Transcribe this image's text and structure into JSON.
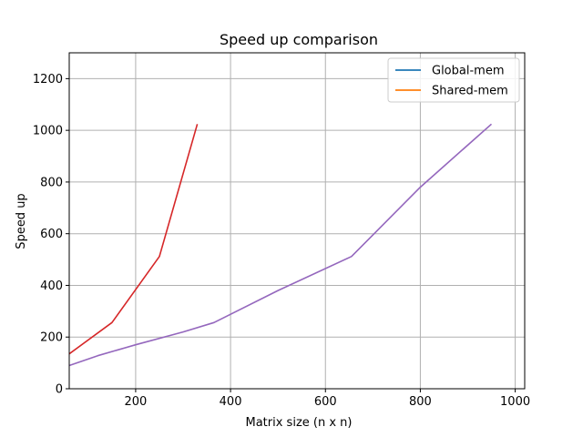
{
  "chart_data": {
    "type": "line",
    "title": "Speed up comparison",
    "xlabel": "Matrix size (n x n)",
    "ylabel": "Speed up",
    "xlim": [
      60,
      1020
    ],
    "ylim": [
      0,
      1300
    ],
    "x_ticks": [
      200,
      400,
      600,
      800,
      1000
    ],
    "y_ticks": [
      0,
      200,
      400,
      600,
      800,
      1000,
      1200
    ],
    "grid": true,
    "legend": {
      "position": "top-right",
      "entries": [
        {
          "name": "Global-mem",
          "color": "#1f77b4"
        },
        {
          "name": "Shared-mem",
          "color": "#ff7f0e"
        }
      ]
    },
    "series": [
      {
        "color": "#d62728",
        "x": [
          60,
          150,
          250,
          330
        ],
        "y": [
          135,
          256,
          512,
          1024
        ]
      },
      {
        "color": "#9467bd",
        "x": [
          60,
          120,
          200,
          300,
          365,
          500,
          655,
          800,
          950
        ],
        "y": [
          90,
          128,
          170,
          220,
          256,
          380,
          512,
          780,
          1024
        ]
      }
    ]
  }
}
